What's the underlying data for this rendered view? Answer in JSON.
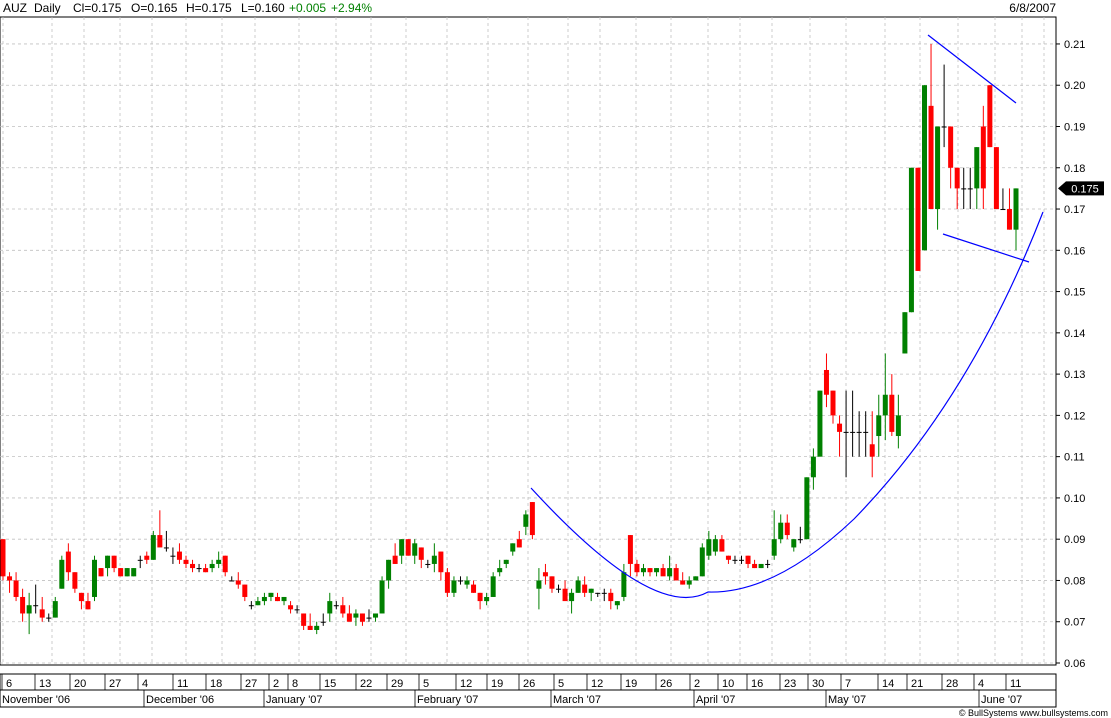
{
  "header": {
    "symbol": "AUZ",
    "period": "Daily",
    "close": "Cl=0.175",
    "open": "O=0.165",
    "high": "H=0.175",
    "low": "L=0.160",
    "change": "+0.005",
    "change_pct": "+2.94%",
    "date": "6/8/2007"
  },
  "footer": {
    "credit": "© BullSystems www.bullsystems.com"
  },
  "colors": {
    "up": "#008000",
    "down": "#ff0000",
    "doji": "#000000",
    "trend": "#0000ff",
    "grid": "#c0c0c0",
    "change": "#008000"
  },
  "chart_data": {
    "type": "candlestick",
    "ylim": [
      0.06,
      0.215
    ],
    "grid": true,
    "y_ticks": [
      "0.06",
      "0.07",
      "0.08",
      "0.09",
      "0.10",
      "0.11",
      "0.12",
      "0.13",
      "0.14",
      "0.15",
      "0.16",
      "0.17",
      "0.18",
      "0.19",
      "0.20",
      "0.21"
    ],
    "last_price_label": "0.175",
    "x_day_labels": [
      "6",
      "13",
      "20",
      "27",
      "4",
      "11",
      "18",
      "27",
      "2",
      "8",
      "15",
      "22",
      "29",
      "5",
      "12",
      "19",
      "26",
      "5",
      "12",
      "19",
      "26",
      "2",
      "10",
      "16",
      "23",
      "30",
      "7",
      "14",
      "21",
      "28",
      "4",
      "11"
    ],
    "x_month_labels": [
      "November '06",
      "December '06",
      "January '07",
      "February '07",
      "March '07",
      "April '07",
      "May '07",
      "June '07"
    ],
    "candles": [
      {
        "o": 0.09,
        "h": 0.09,
        "l": 0.08,
        "c": 0.081
      },
      {
        "o": 0.081,
        "h": 0.082,
        "l": 0.077,
        "c": 0.08
      },
      {
        "o": 0.08,
        "h": 0.082,
        "l": 0.075,
        "c": 0.076
      },
      {
        "o": 0.076,
        "h": 0.078,
        "l": 0.07,
        "c": 0.072
      },
      {
        "o": 0.072,
        "h": 0.077,
        "l": 0.067,
        "c": 0.074
      },
      {
        "o": 0.074,
        "h": 0.079,
        "l": 0.072,
        "c": 0.074
      },
      {
        "o": 0.073,
        "h": 0.076,
        "l": 0.07,
        "c": 0.071
      },
      {
        "o": 0.071,
        "h": 0.072,
        "l": 0.07,
        "c": 0.071
      },
      {
        "o": 0.071,
        "h": 0.076,
        "l": 0.071,
        "c": 0.075
      },
      {
        "o": 0.078,
        "h": 0.086,
        "l": 0.078,
        "c": 0.085
      },
      {
        "o": 0.087,
        "h": 0.089,
        "l": 0.08,
        "c": 0.082
      },
      {
        "o": 0.082,
        "h": 0.082,
        "l": 0.077,
        "c": 0.078
      },
      {
        "o": 0.077,
        "h": 0.077,
        "l": 0.073,
        "c": 0.075
      },
      {
        "o": 0.075,
        "h": 0.077,
        "l": 0.073,
        "c": 0.073
      },
      {
        "o": 0.076,
        "h": 0.086,
        "l": 0.075,
        "c": 0.085
      },
      {
        "o": 0.083,
        "h": 0.083,
        "l": 0.081,
        "c": 0.081
      },
      {
        "o": 0.083,
        "h": 0.086,
        "l": 0.081,
        "c": 0.086
      },
      {
        "o": 0.086,
        "h": 0.086,
        "l": 0.082,
        "c": 0.083
      },
      {
        "o": 0.083,
        "h": 0.083,
        "l": 0.081,
        "c": 0.081
      },
      {
        "o": 0.081,
        "h": 0.083,
        "l": 0.081,
        "c": 0.083
      },
      {
        "o": 0.081,
        "h": 0.083,
        "l": 0.081,
        "c": 0.083
      },
      {
        "o": 0.085,
        "h": 0.086,
        "l": 0.083,
        "c": 0.085
      },
      {
        "o": 0.086,
        "h": 0.087,
        "l": 0.084,
        "c": 0.085
      },
      {
        "o": 0.085,
        "h": 0.092,
        "l": 0.085,
        "c": 0.091
      },
      {
        "o": 0.091,
        "h": 0.097,
        "l": 0.089,
        "c": 0.088
      },
      {
        "o": 0.088,
        "h": 0.092,
        "l": 0.087,
        "c": 0.088
      },
      {
        "o": 0.086,
        "h": 0.088,
        "l": 0.084,
        "c": 0.086
      },
      {
        "o": 0.087,
        "h": 0.089,
        "l": 0.084,
        "c": 0.085
      },
      {
        "o": 0.085,
        "h": 0.086,
        "l": 0.083,
        "c": 0.084
      },
      {
        "o": 0.084,
        "h": 0.085,
        "l": 0.082,
        "c": 0.083
      },
      {
        "o": 0.083,
        "h": 0.084,
        "l": 0.082,
        "c": 0.083
      },
      {
        "o": 0.083,
        "h": 0.084,
        "l": 0.082,
        "c": 0.082
      },
      {
        "o": 0.083,
        "h": 0.085,
        "l": 0.082,
        "c": 0.084
      },
      {
        "o": 0.084,
        "h": 0.087,
        "l": 0.083,
        "c": 0.085
      },
      {
        "o": 0.086,
        "h": 0.086,
        "l": 0.081,
        "c": 0.082
      },
      {
        "o": 0.08,
        "h": 0.081,
        "l": 0.08,
        "c": 0.08
      },
      {
        "o": 0.08,
        "h": 0.082,
        "l": 0.078,
        "c": 0.079
      },
      {
        "o": 0.079,
        "h": 0.079,
        "l": 0.075,
        "c": 0.076
      },
      {
        "o": 0.074,
        "h": 0.075,
        "l": 0.073,
        "c": 0.074
      },
      {
        "o": 0.074,
        "h": 0.076,
        "l": 0.074,
        "c": 0.075
      },
      {
        "o": 0.075,
        "h": 0.077,
        "l": 0.074,
        "c": 0.076
      },
      {
        "o": 0.076,
        "h": 0.077,
        "l": 0.075,
        "c": 0.077
      },
      {
        "o": 0.076,
        "h": 0.077,
        "l": 0.075,
        "c": 0.075
      },
      {
        "o": 0.075,
        "h": 0.076,
        "l": 0.074,
        "c": 0.076
      },
      {
        "o": 0.074,
        "h": 0.075,
        "l": 0.072,
        "c": 0.073
      },
      {
        "o": 0.073,
        "h": 0.074,
        "l": 0.072,
        "c": 0.073
      },
      {
        "o": 0.072,
        "h": 0.072,
        "l": 0.068,
        "c": 0.069
      },
      {
        "o": 0.069,
        "h": 0.072,
        "l": 0.068,
        "c": 0.068
      },
      {
        "o": 0.068,
        "h": 0.07,
        "l": 0.067,
        "c": 0.069
      },
      {
        "o": 0.07,
        "h": 0.072,
        "l": 0.069,
        "c": 0.07
      },
      {
        "o": 0.072,
        "h": 0.077,
        "l": 0.07,
        "c": 0.075
      },
      {
        "o": 0.074,
        "h": 0.075,
        "l": 0.073,
        "c": 0.074
      },
      {
        "o": 0.074,
        "h": 0.076,
        "l": 0.071,
        "c": 0.072
      },
      {
        "o": 0.072,
        "h": 0.074,
        "l": 0.071,
        "c": 0.07
      },
      {
        "o": 0.071,
        "h": 0.073,
        "l": 0.069,
        "c": 0.072
      },
      {
        "o": 0.072,
        "h": 0.072,
        "l": 0.069,
        "c": 0.07
      },
      {
        "o": 0.071,
        "h": 0.073,
        "l": 0.07,
        "c": 0.071
      },
      {
        "o": 0.071,
        "h": 0.072,
        "l": 0.07,
        "c": 0.072
      },
      {
        "o": 0.072,
        "h": 0.081,
        "l": 0.072,
        "c": 0.08
      },
      {
        "o": 0.08,
        "h": 0.085,
        "l": 0.078,
        "c": 0.085
      },
      {
        "o": 0.086,
        "h": 0.089,
        "l": 0.084,
        "c": 0.084
      },
      {
        "o": 0.086,
        "h": 0.09,
        "l": 0.084,
        "c": 0.09
      },
      {
        "o": 0.09,
        "h": 0.09,
        "l": 0.086,
        "c": 0.086
      },
      {
        "o": 0.086,
        "h": 0.09,
        "l": 0.084,
        "c": 0.089
      },
      {
        "o": 0.088,
        "h": 0.088,
        "l": 0.083,
        "c": 0.085
      },
      {
        "o": 0.084,
        "h": 0.085,
        "l": 0.083,
        "c": 0.084
      },
      {
        "o": 0.084,
        "h": 0.089,
        "l": 0.082,
        "c": 0.086
      },
      {
        "o": 0.087,
        "h": 0.087,
        "l": 0.08,
        "c": 0.082
      },
      {
        "o": 0.082,
        "h": 0.083,
        "l": 0.076,
        "c": 0.077
      },
      {
        "o": 0.077,
        "h": 0.081,
        "l": 0.076,
        "c": 0.08
      },
      {
        "o": 0.08,
        "h": 0.081,
        "l": 0.079,
        "c": 0.08
      },
      {
        "o": 0.079,
        "h": 0.081,
        "l": 0.078,
        "c": 0.08
      },
      {
        "o": 0.079,
        "h": 0.08,
        "l": 0.077,
        "c": 0.077
      },
      {
        "o": 0.077,
        "h": 0.077,
        "l": 0.073,
        "c": 0.075
      },
      {
        "o": 0.075,
        "h": 0.077,
        "l": 0.074,
        "c": 0.076
      },
      {
        "o": 0.076,
        "h": 0.082,
        "l": 0.076,
        "c": 0.081
      },
      {
        "o": 0.082,
        "h": 0.085,
        "l": 0.081,
        "c": 0.083
      },
      {
        "o": 0.084,
        "h": 0.085,
        "l": 0.083,
        "c": 0.085
      },
      {
        "o": 0.087,
        "h": 0.089,
        "l": 0.086,
        "c": 0.089
      },
      {
        "o": 0.09,
        "h": 0.092,
        "l": 0.088,
        "c": 0.088
      },
      {
        "o": 0.093,
        "h": 0.097,
        "l": 0.091,
        "c": 0.096
      },
      {
        "o": 0.099,
        "h": 0.099,
        "l": 0.09,
        "c": 0.091
      },
      {
        "o": 0.078,
        "h": 0.083,
        "l": 0.073,
        "c": 0.08
      },
      {
        "o": 0.082,
        "h": 0.084,
        "l": 0.079,
        "c": 0.081
      },
      {
        "o": 0.081,
        "h": 0.081,
        "l": 0.077,
        "c": 0.078
      },
      {
        "o": 0.078,
        "h": 0.079,
        "l": 0.077,
        "c": 0.078
      },
      {
        "o": 0.078,
        "h": 0.08,
        "l": 0.076,
        "c": 0.075
      },
      {
        "o": 0.075,
        "h": 0.078,
        "l": 0.072,
        "c": 0.077
      },
      {
        "o": 0.077,
        "h": 0.081,
        "l": 0.077,
        "c": 0.08
      },
      {
        "o": 0.079,
        "h": 0.081,
        "l": 0.076,
        "c": 0.077
      },
      {
        "o": 0.077,
        "h": 0.078,
        "l": 0.075,
        "c": 0.078
      },
      {
        "o": 0.077,
        "h": 0.077,
        "l": 0.076,
        "c": 0.077
      },
      {
        "o": 0.077,
        "h": 0.078,
        "l": 0.075,
        "c": 0.077
      },
      {
        "o": 0.077,
        "h": 0.078,
        "l": 0.073,
        "c": 0.075
      },
      {
        "o": 0.074,
        "h": 0.075,
        "l": 0.073,
        "c": 0.075
      },
      {
        "o": 0.076,
        "h": 0.084,
        "l": 0.075,
        "c": 0.082
      },
      {
        "o": 0.091,
        "h": 0.091,
        "l": 0.081,
        "c": 0.084
      },
      {
        "o": 0.084,
        "h": 0.085,
        "l": 0.081,
        "c": 0.082
      },
      {
        "o": 0.082,
        "h": 0.084,
        "l": 0.081,
        "c": 0.083
      },
      {
        "o": 0.083,
        "h": 0.083,
        "l": 0.081,
        "c": 0.082
      },
      {
        "o": 0.082,
        "h": 0.083,
        "l": 0.081,
        "c": 0.083
      },
      {
        "o": 0.083,
        "h": 0.084,
        "l": 0.082,
        "c": 0.081
      },
      {
        "o": 0.081,
        "h": 0.086,
        "l": 0.08,
        "c": 0.083
      },
      {
        "o": 0.083,
        "h": 0.084,
        "l": 0.08,
        "c": 0.08
      },
      {
        "o": 0.08,
        "h": 0.082,
        "l": 0.079,
        "c": 0.079
      },
      {
        "o": 0.079,
        "h": 0.081,
        "l": 0.078,
        "c": 0.08
      },
      {
        "o": 0.08,
        "h": 0.081,
        "l": 0.08,
        "c": 0.081
      },
      {
        "o": 0.081,
        "h": 0.089,
        "l": 0.081,
        "c": 0.088
      },
      {
        "o": 0.086,
        "h": 0.092,
        "l": 0.085,
        "c": 0.09
      },
      {
        "o": 0.087,
        "h": 0.091,
        "l": 0.086,
        "c": 0.09
      },
      {
        "o": 0.09,
        "h": 0.091,
        "l": 0.087,
        "c": 0.087
      },
      {
        "o": 0.086,
        "h": 0.086,
        "l": 0.084,
        "c": 0.085
      },
      {
        "o": 0.085,
        "h": 0.086,
        "l": 0.084,
        "c": 0.085
      },
      {
        "o": 0.085,
        "h": 0.086,
        "l": 0.084,
        "c": 0.085
      },
      {
        "o": 0.086,
        "h": 0.086,
        "l": 0.083,
        "c": 0.084
      },
      {
        "o": 0.084,
        "h": 0.085,
        "l": 0.083,
        "c": 0.083
      },
      {
        "o": 0.083,
        "h": 0.084,
        "l": 0.083,
        "c": 0.084
      },
      {
        "o": 0.084,
        "h": 0.085,
        "l": 0.083,
        "c": 0.084
      },
      {
        "o": 0.086,
        "h": 0.097,
        "l": 0.085,
        "c": 0.09
      },
      {
        "o": 0.09,
        "h": 0.096,
        "l": 0.089,
        "c": 0.094
      },
      {
        "o": 0.094,
        "h": 0.096,
        "l": 0.09,
        "c": 0.091
      },
      {
        "o": 0.088,
        "h": 0.09,
        "l": 0.087,
        "c": 0.09
      },
      {
        "o": 0.09,
        "h": 0.093,
        "l": 0.089,
        "c": 0.09
      },
      {
        "o": 0.09,
        "h": 0.105,
        "l": 0.09,
        "c": 0.105
      },
      {
        "o": 0.105,
        "h": 0.112,
        "l": 0.102,
        "c": 0.11
      },
      {
        "o": 0.11,
        "h": 0.126,
        "l": 0.11,
        "c": 0.126
      },
      {
        "o": 0.131,
        "h": 0.135,
        "l": 0.122,
        "c": 0.125
      },
      {
        "o": 0.126,
        "h": 0.126,
        "l": 0.118,
        "c": 0.12
      },
      {
        "o": 0.118,
        "h": 0.12,
        "l": 0.11,
        "c": 0.116
      },
      {
        "o": 0.116,
        "h": 0.126,
        "l": 0.105,
        "c": 0.116
      },
      {
        "o": 0.116,
        "h": 0.126,
        "l": 0.11,
        "c": 0.116
      },
      {
        "o": 0.116,
        "h": 0.121,
        "l": 0.11,
        "c": 0.116
      },
      {
        "o": 0.116,
        "h": 0.121,
        "l": 0.11,
        "c": 0.116
      },
      {
        "o": 0.113,
        "h": 0.121,
        "l": 0.105,
        "c": 0.11
      },
      {
        "o": 0.115,
        "h": 0.125,
        "l": 0.11,
        "c": 0.12
      },
      {
        "o": 0.12,
        "h": 0.135,
        "l": 0.114,
        "c": 0.125
      },
      {
        "o": 0.125,
        "h": 0.13,
        "l": 0.115,
        "c": 0.116
      },
      {
        "o": 0.115,
        "h": 0.125,
        "l": 0.112,
        "c": 0.12
      },
      {
        "o": 0.135,
        "h": 0.145,
        "l": 0.135,
        "c": 0.145
      },
      {
        "o": 0.145,
        "h": 0.18,
        "l": 0.145,
        "c": 0.18
      },
      {
        "o": 0.18,
        "h": 0.18,
        "l": 0.155,
        "c": 0.155
      },
      {
        "o": 0.16,
        "h": 0.2,
        "l": 0.16,
        "c": 0.2
      },
      {
        "o": 0.195,
        "h": 0.21,
        "l": 0.17,
        "c": 0.17
      },
      {
        "o": 0.17,
        "h": 0.19,
        "l": 0.165,
        "c": 0.19
      },
      {
        "o": 0.19,
        "h": 0.205,
        "l": 0.185,
        "c": 0.19
      },
      {
        "o": 0.19,
        "h": 0.19,
        "l": 0.175,
        "c": 0.18
      },
      {
        "o": 0.18,
        "h": 0.18,
        "l": 0.17,
        "c": 0.175
      },
      {
        "o": 0.175,
        "h": 0.18,
        "l": 0.17,
        "c": 0.175
      },
      {
        "o": 0.175,
        "h": 0.18,
        "l": 0.17,
        "c": 0.175
      },
      {
        "o": 0.175,
        "h": 0.185,
        "l": 0.17,
        "c": 0.185
      },
      {
        "o": 0.19,
        "h": 0.195,
        "l": 0.17,
        "c": 0.175
      },
      {
        "o": 0.2,
        "h": 0.2,
        "l": 0.185,
        "c": 0.185
      },
      {
        "o": 0.185,
        "h": 0.185,
        "l": 0.17,
        "c": 0.17
      },
      {
        "o": 0.17,
        "h": 0.175,
        "l": 0.17,
        "c": 0.17
      },
      {
        "o": 0.17,
        "h": 0.175,
        "l": 0.165,
        "c": 0.165
      },
      {
        "o": 0.165,
        "h": 0.175,
        "l": 0.16,
        "c": 0.175
      }
    ],
    "trendlines": [
      {
        "name": "rounded-bottom-curve",
        "type": "curve"
      },
      {
        "name": "pennant-upper",
        "type": "line"
      },
      {
        "name": "pennant-lower",
        "type": "line"
      }
    ]
  }
}
